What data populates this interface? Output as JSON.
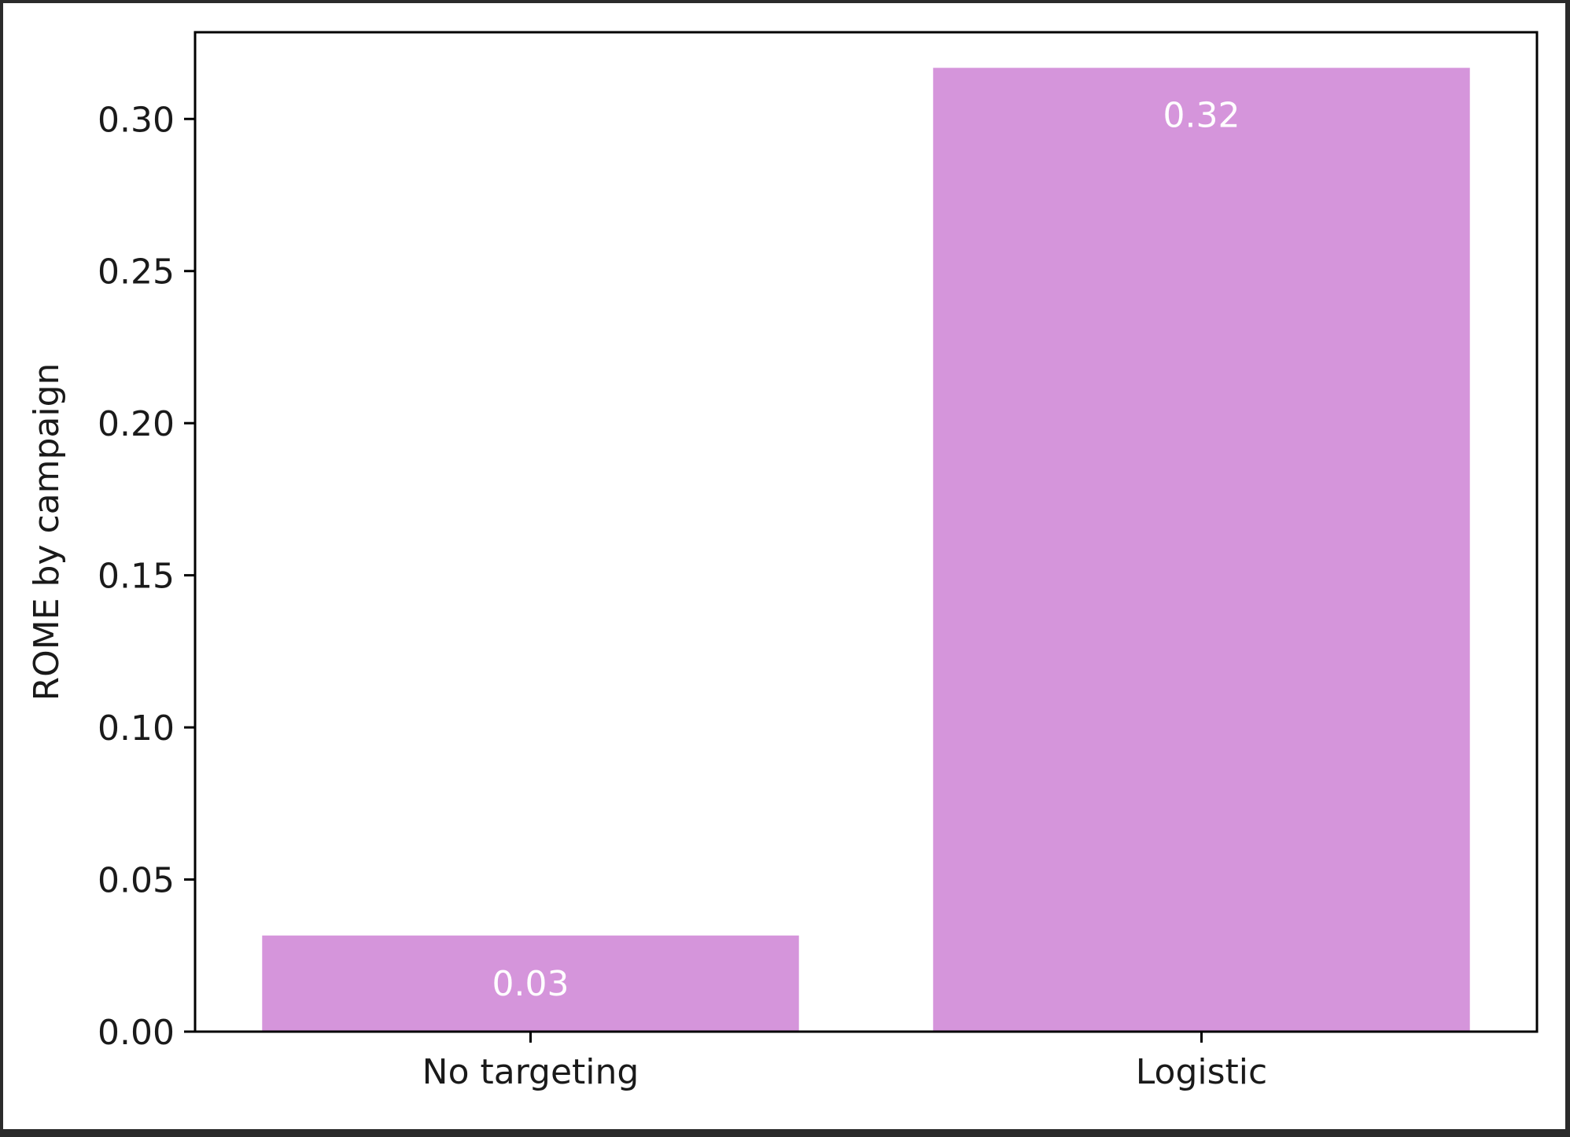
{
  "chart_data": {
    "type": "bar",
    "categories": [
      "No targeting",
      "Logistic"
    ],
    "values": [
      0.0316,
      0.3168
    ],
    "data_labels": [
      "0.03",
      "0.32"
    ],
    "title": "",
    "xlabel": "",
    "ylabel": "ROME by campaign",
    "ylim": [
      0,
      0.3285
    ],
    "yticks": [
      0.0,
      0.05,
      0.1,
      0.15,
      0.2,
      0.25,
      0.3
    ],
    "ytick_labels": [
      "0.00",
      "0.05",
      "0.10",
      "0.15",
      "0.20",
      "0.25",
      "0.30"
    ],
    "grid": false,
    "legend": "none",
    "bar_color": "#d595db",
    "label_color": "#ffffff"
  }
}
